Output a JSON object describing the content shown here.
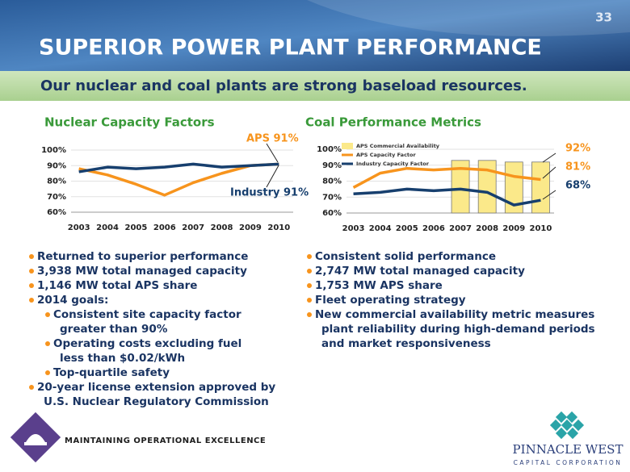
{
  "header": {
    "page_number": "33",
    "title": "SUPERIOR POWER PLANT PERFORMANCE",
    "subtitle": "Our nuclear and coal plants are strong baseload resources."
  },
  "chart_data": [
    {
      "type": "line",
      "title": "Nuclear Capacity Factors",
      "categories": [
        "2003",
        "2004",
        "2005",
        "2006",
        "2007",
        "2008",
        "2009",
        "2010"
      ],
      "ylim": [
        60,
        100
      ],
      "yticks": [
        {
          "value": 60,
          "label": "60%"
        },
        {
          "value": 70,
          "label": "70%"
        },
        {
          "value": 80,
          "label": "80%"
        },
        {
          "value": 90,
          "label": "90%"
        },
        {
          "value": 100,
          "label": "100%"
        }
      ],
      "grid": true,
      "series": [
        {
          "name": "APS",
          "type": "line",
          "color": "#f7941d",
          "values": [
            88,
            84,
            78,
            71,
            79,
            85,
            90,
            91
          ]
        },
        {
          "name": "Industry",
          "type": "line",
          "color": "#173f6e",
          "values": [
            86,
            89,
            88,
            89,
            91,
            89,
            90,
            91
          ]
        }
      ],
      "annotations": [
        {
          "text": "APS 91%",
          "color": "#f7941d"
        },
        {
          "text": "Industry 91%",
          "color": "#173f6e"
        }
      ]
    },
    {
      "type": "combo",
      "title": "Coal Performance Metrics",
      "categories": [
        "2003",
        "2004",
        "2005",
        "2006",
        "2007",
        "2008",
        "2009",
        "2010"
      ],
      "ylim": [
        60,
        100
      ],
      "yticks": [
        {
          "value": 60,
          "label": "60%"
        },
        {
          "value": 70,
          "label": "70%"
        },
        {
          "value": 80,
          "label": "80%"
        },
        {
          "value": 90,
          "label": "90%"
        },
        {
          "value": 100,
          "label": "100%"
        }
      ],
      "grid": true,
      "series": [
        {
          "name": "APS Commercial Availability",
          "type": "bar",
          "color": "#fbe98a",
          "values": [
            null,
            null,
            null,
            null,
            93,
            93,
            92,
            92
          ]
        },
        {
          "name": "APS Capacity Factor",
          "type": "line",
          "color": "#f7941d",
          "values": [
            76,
            85,
            88,
            87,
            88,
            87,
            83,
            81
          ]
        },
        {
          "name": "Industry Capacity Factor",
          "type": "line",
          "color": "#173f6e",
          "values": [
            72,
            73,
            75,
            74,
            75,
            73,
            65,
            68
          ]
        }
      ],
      "annotations": [
        {
          "text": "92%",
          "color": "#f7941d"
        },
        {
          "text": "81%",
          "color": "#f7941d"
        },
        {
          "text": "68%",
          "color": "#173f6e"
        }
      ]
    }
  ],
  "left_bullets": [
    {
      "level": 1,
      "lines": [
        "Returned to superior performance"
      ]
    },
    {
      "level": 1,
      "lines": [
        "3,938 MW total managed capacity"
      ]
    },
    {
      "level": 1,
      "lines": [
        "1,146 MW total APS share"
      ]
    },
    {
      "level": 1,
      "lines": [
        "2014 goals:"
      ]
    },
    {
      "level": 2,
      "lines": [
        "Consistent site capacity factor",
        "greater than 90%"
      ]
    },
    {
      "level": 2,
      "lines": [
        "Operating costs excluding fuel",
        "less than $0.02/kWh"
      ]
    },
    {
      "level": 2,
      "lines": [
        "Top-quartile safety"
      ]
    },
    {
      "level": 1,
      "lines": [
        "20-year license extension approved by",
        "U.S. Nuclear Regulatory Commission"
      ]
    }
  ],
  "right_bullets": [
    {
      "level": 1,
      "lines": [
        "Consistent solid performance"
      ]
    },
    {
      "level": 1,
      "lines": [
        "2,747 MW total managed capacity"
      ]
    },
    {
      "level": 1,
      "lines": [
        "1,753 MW APS share"
      ]
    },
    {
      "level": 1,
      "lines": [
        "Fleet operating strategy"
      ]
    },
    {
      "level": 1,
      "lines": [
        "New commercial availability metric measures",
        "plant reliability during high-demand periods",
        "and market responsiveness"
      ]
    }
  ],
  "footer": {
    "tagline": "MAINTAINING OPERATIONAL EXCELLENCE",
    "logo_name": "PINNACLE WEST",
    "logo_sub": "CAPITAL CORPORATION"
  }
}
